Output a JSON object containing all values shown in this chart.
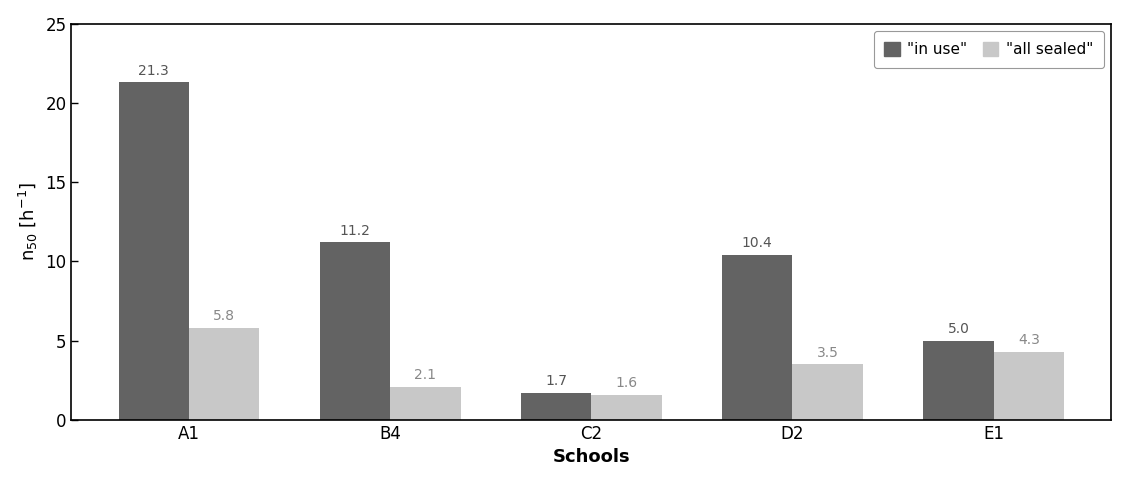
{
  "categories": [
    "A1",
    "B4",
    "C2",
    "D2",
    "E1"
  ],
  "in_use_values": [
    21.3,
    11.2,
    1.7,
    10.4,
    5.0
  ],
  "all_sealed_values": [
    5.8,
    2.1,
    1.6,
    3.5,
    4.3
  ],
  "in_use_color": "#636363",
  "all_sealed_color": "#c8c8c8",
  "bar_width": 0.35,
  "ylim": [
    0,
    25
  ],
  "yticks": [
    0,
    5,
    10,
    15,
    20,
    25
  ],
  "xlabel": "Schools",
  "ylabel": "n$_{50}$ [h$^{-1}$]",
  "legend_in_use": "\"in use\"",
  "legend_all_sealed": "\"all sealed\"",
  "title": "",
  "tick_fontsize": 12,
  "legend_fontsize": 11,
  "bar_label_fontsize": 10,
  "xlabel_fontsize": 13,
  "ylabel_fontsize": 13,
  "in_use_label_color": "#555555",
  "all_sealed_label_color": "#888888",
  "background_color": "#ffffff"
}
